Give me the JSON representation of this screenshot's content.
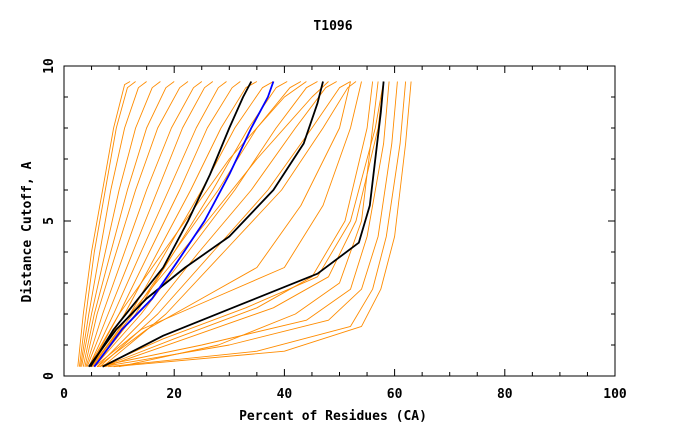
{
  "chart_data": {
    "type": "line",
    "title": "T1096",
    "xlabel": "Percent of Residues (CA)",
    "ylabel": "Distance Cutoff, A",
    "xlim": [
      0,
      100
    ],
    "ylim": [
      0,
      10
    ],
    "x_ticks": [
      "0",
      "20",
      "40",
      "60",
      "80",
      "100"
    ],
    "y_ticks": [
      "0",
      "5",
      "10"
    ],
    "grid": false,
    "legend": "none",
    "colors": {
      "background_series": "#ff8c00",
      "highlight_series": "#000000",
      "reference_series": "#0000ff"
    },
    "background_series_note_free": true,
    "series": [
      {
        "x": [
          2.5,
          3.5,
          5.0,
          7.0,
          9.0,
          11.0,
          12.0
        ],
        "y": [
          0.3,
          2.0,
          4.0,
          6.0,
          8.0,
          9.4,
          9.5
        ]
      },
      {
        "x": [
          2.8,
          4.0,
          5.5,
          7.5,
          9.5,
          11.5,
          13.0
        ],
        "y": [
          0.3,
          2.0,
          4.0,
          6.0,
          8.0,
          9.3,
          9.5
        ]
      },
      {
        "x": [
          3.0,
          4.5,
          6.5,
          8.5,
          11.0,
          13.5,
          15.0
        ],
        "y": [
          0.3,
          2.0,
          4.0,
          6.0,
          8.0,
          9.3,
          9.5
        ]
      },
      {
        "x": [
          3.2,
          5.0,
          7.5,
          10.0,
          13.0,
          16.0,
          17.5
        ],
        "y": [
          0.3,
          2.0,
          4.0,
          6.0,
          8.0,
          9.3,
          9.5
        ]
      },
      {
        "x": [
          3.5,
          5.5,
          8.5,
          11.5,
          15.0,
          18.5,
          20.0
        ],
        "y": [
          0.3,
          2.0,
          4.0,
          6.0,
          8.0,
          9.3,
          9.5
        ]
      },
      {
        "x": [
          3.8,
          6.0,
          9.5,
          13.0,
          17.0,
          21.0,
          22.5
        ],
        "y": [
          0.3,
          2.0,
          4.0,
          6.0,
          8.0,
          9.3,
          9.5
        ]
      },
      {
        "x": [
          4.0,
          7.0,
          11.0,
          15.0,
          19.5,
          23.5,
          25.0
        ],
        "y": [
          0.3,
          2.0,
          4.0,
          6.0,
          8.0,
          9.3,
          9.5
        ]
      },
      {
        "x": [
          4.2,
          8.0,
          12.5,
          17.0,
          21.5,
          25.5,
          27.0
        ],
        "y": [
          0.3,
          2.0,
          4.0,
          6.0,
          8.0,
          9.3,
          9.5
        ]
      },
      {
        "x": [
          4.5,
          9.0,
          14.0,
          19.0,
          24.0,
          28.0,
          29.5
        ],
        "y": [
          0.3,
          2.0,
          4.0,
          6.0,
          8.0,
          9.3,
          9.5
        ]
      },
      {
        "x": [
          4.8,
          10.0,
          15.5,
          21.0,
          26.0,
          30.5,
          32.0
        ],
        "y": [
          0.3,
          2.0,
          4.0,
          6.0,
          8.0,
          9.3,
          9.5
        ]
      },
      {
        "x": [
          5.0,
          11.0,
          17.0,
          23.0,
          28.5,
          33.0,
          35.0
        ],
        "y": [
          0.3,
          2.0,
          4.0,
          6.0,
          8.0,
          9.3,
          9.5
        ]
      },
      {
        "x": [
          5.2,
          12.0,
          18.5,
          25.0,
          31.0,
          36.0,
          38.0
        ],
        "y": [
          0.3,
          2.0,
          4.0,
          6.0,
          8.0,
          9.3,
          9.5
        ]
      },
      {
        "x": [
          5.5,
          13.0,
          20.0,
          27.0,
          33.5,
          38.5,
          40.5
        ],
        "y": [
          0.3,
          2.0,
          4.0,
          6.0,
          8.0,
          9.3,
          9.5
        ]
      },
      {
        "x": [
          5.0,
          12.5,
          20.0,
          28.0,
          35.0,
          41.0,
          43.0
        ],
        "y": [
          0.3,
          2.0,
          4.0,
          6.0,
          8.0,
          9.3,
          9.5
        ]
      },
      {
        "x": [
          5.5,
          14.0,
          22.5,
          31.0,
          38.5,
          44.0,
          46.0
        ],
        "y": [
          0.3,
          2.0,
          4.0,
          6.0,
          8.0,
          9.3,
          9.5
        ]
      },
      {
        "x": [
          6.0,
          15.5,
          24.5,
          34.0,
          42.0,
          47.5,
          49.5
        ],
        "y": [
          0.3,
          2.0,
          4.0,
          6.0,
          8.0,
          9.3,
          9.5
        ]
      },
      {
        "x": [
          6.5,
          17.0,
          27.0,
          37.0,
          45.0,
          50.0,
          52.0
        ],
        "y": [
          0.3,
          2.0,
          4.0,
          6.0,
          8.0,
          9.3,
          9.5
        ]
      },
      {
        "x": [
          7.0,
          18.5,
          29.0,
          39.5,
          47.0,
          51.5,
          53.0
        ],
        "y": [
          0.3,
          2.0,
          4.0,
          6.0,
          8.0,
          9.3,
          9.5
        ]
      },
      {
        "x": [
          4.5,
          10.0,
          16.0,
          22.0,
          30.0,
          40.0,
          44.0
        ],
        "y": [
          0.3,
          2.0,
          3.5,
          5.0,
          7.0,
          9.0,
          9.5
        ]
      },
      {
        "x": [
          5.0,
          12.0,
          19.0,
          26.0,
          35.0,
          45.0,
          48.0
        ],
        "y": [
          0.3,
          2.0,
          3.5,
          5.0,
          7.0,
          9.0,
          9.5
        ]
      },
      {
        "x": [
          6.0,
          15.0,
          25.0,
          35.0,
          43.0,
          50.0,
          52.0
        ],
        "y": [
          0.3,
          1.5,
          2.5,
          3.5,
          5.5,
          8.0,
          9.5
        ]
      },
      {
        "x": [
          5.5,
          14.0,
          27.0,
          40.0,
          47.0,
          52.0,
          54.0
        ],
        "y": [
          0.3,
          1.5,
          2.5,
          3.5,
          5.5,
          8.0,
          9.5
        ]
      },
      {
        "x": [
          7.0,
          20.0,
          35.0,
          45.0,
          51.0,
          55.0,
          56.0
        ],
        "y": [
          0.3,
          1.2,
          2.2,
          3.2,
          5.0,
          8.0,
          9.5
        ]
      },
      {
        "x": [
          7.5,
          22.0,
          38.0,
          48.0,
          53.0,
          57.0,
          58.0
        ],
        "y": [
          0.3,
          1.2,
          2.2,
          3.2,
          5.0,
          8.0,
          9.5
        ]
      },
      {
        "x": [
          6.0,
          25.0,
          44.0,
          52.0,
          55.0,
          58.0,
          59.0
        ],
        "y": [
          0.3,
          1.0,
          1.8,
          2.8,
          4.5,
          7.5,
          9.5
        ]
      },
      {
        "x": [
          7.0,
          30.0,
          48.0,
          54.0,
          57.0,
          59.5,
          60.5
        ],
        "y": [
          0.3,
          1.0,
          1.8,
          2.8,
          4.5,
          7.5,
          9.5
        ]
      },
      {
        "x": [
          8.0,
          35.0,
          52.0,
          56.0,
          58.5,
          61.0,
          62.0
        ],
        "y": [
          0.3,
          0.8,
          1.6,
          2.8,
          4.5,
          7.5,
          9.5
        ]
      },
      {
        "x": [
          9.0,
          40.0,
          54.0,
          57.5,
          60.0,
          62.0,
          63.0
        ],
        "y": [
          0.3,
          0.8,
          1.6,
          2.8,
          4.5,
          7.5,
          9.5
        ]
      },
      {
        "x": [
          10.0,
          28.0,
          42.0,
          50.0,
          54.0,
          56.0,
          57.0
        ],
        "y": [
          0.3,
          1.0,
          2.0,
          3.0,
          5.0,
          8.0,
          9.5
        ]
      },
      {
        "x": [
          6.5,
          18.0,
          33.0,
          46.0,
          52.0,
          56.5,
          58.0
        ],
        "y": [
          0.3,
          1.2,
          2.2,
          3.2,
          5.0,
          8.0,
          9.5
        ]
      }
    ],
    "highlight_series": [
      {
        "x": [
          4.8,
          9.0,
          13.5,
          18.0,
          22.5,
          26.5,
          30.0,
          32.5,
          34.0
        ],
        "y": [
          0.3,
          1.5,
          2.5,
          3.5,
          5.0,
          6.5,
          8.0,
          9.0,
          9.5
        ]
      },
      {
        "x": [
          4.5,
          9.5,
          15.0,
          22.0,
          30.0,
          38.0,
          43.5,
          46.0,
          47.0
        ],
        "y": [
          0.3,
          1.5,
          2.5,
          3.5,
          4.5,
          6.0,
          7.5,
          8.8,
          9.5
        ]
      },
      {
        "x": [
          7.0,
          18.0,
          32.0,
          46.0,
          53.5,
          55.5,
          56.5,
          57.5,
          58.0
        ],
        "y": [
          0.3,
          1.3,
          2.3,
          3.3,
          4.3,
          5.5,
          7.0,
          8.5,
          9.5
        ]
      }
    ],
    "reference_series": {
      "x": [
        5.5,
        10.5,
        16.0,
        21.0,
        25.5,
        30.0,
        34.0,
        37.0,
        38.0
      ],
      "y": [
        0.3,
        1.5,
        2.5,
        3.8,
        5.0,
        6.5,
        8.0,
        9.0,
        9.5
      ]
    }
  }
}
